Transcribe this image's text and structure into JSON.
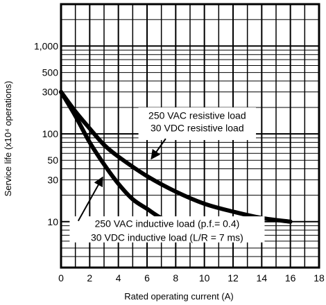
{
  "chart_data": {
    "type": "line",
    "xlabel": "Rated operating current (A)",
    "ylabel": "Service life (x10⁴ operations)",
    "xlim": [
      0,
      18
    ],
    "ylim": [
      3,
      3000
    ],
    "yscale": "log",
    "x_ticks": [
      0,
      2,
      4,
      6,
      8,
      10,
      12,
      14,
      16,
      18
    ],
    "y_ticks": [
      {
        "value": 10,
        "label": "10"
      },
      {
        "value": 30,
        "label": "30"
      },
      {
        "value": 50,
        "label": "50"
      },
      {
        "value": 100,
        "label": "100"
      },
      {
        "value": 300,
        "label": "300"
      },
      {
        "value": 500,
        "label": "500"
      },
      {
        "value": 1000,
        "label": "1,000"
      }
    ],
    "grid": true,
    "series": [
      {
        "name": "250 VAC resistive load / 30 VDC resistive load",
        "x": [
          0,
          1,
          2,
          3,
          4,
          6,
          8,
          10,
          12,
          14,
          16
        ],
        "y": [
          300,
          180,
          115,
          75,
          55,
          33,
          22,
          16,
          13,
          11,
          10
        ]
      },
      {
        "name": "250 VAC inductive load (p.f.= 0.4) / 30 VDC inductive load (L/R = 7 ms)",
        "x": [
          0,
          1,
          2,
          3,
          4,
          5,
          6,
          7,
          8
        ],
        "y": [
          300,
          160,
          80,
          45,
          27,
          18,
          14,
          11,
          10
        ]
      }
    ],
    "annotations": [
      {
        "lines": [
          "250 VAC resistive load",
          "30 VDC resistive load"
        ],
        "points_to_series": 0
      },
      {
        "lines": [
          "250 VAC inductive load (p.f.= 0.4)",
          "30 VDC inductive load (L/R = 7 ms)"
        ],
        "points_to_series": 1
      }
    ]
  }
}
